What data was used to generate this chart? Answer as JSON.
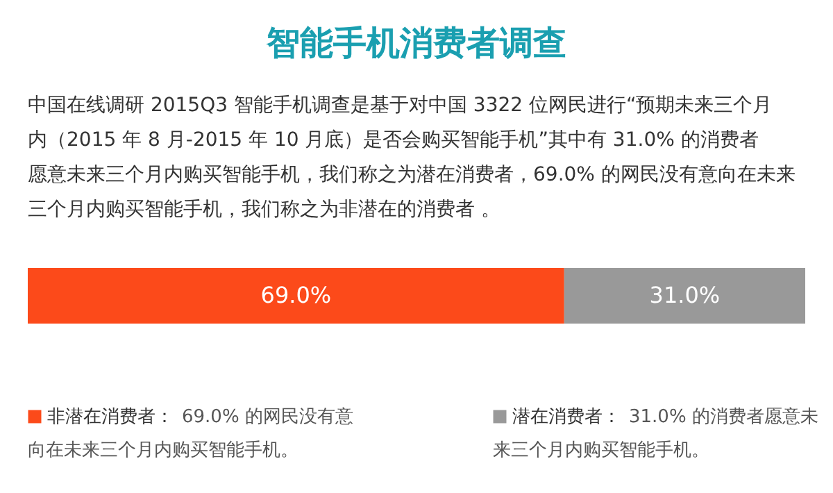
{
  "chart_data": {
    "type": "bar",
    "orientation": "horizontal",
    "stacked": true,
    "title": "智能手机消费者调查",
    "subtitle": "中国在线调研 2015Q3 智能手机调查是基于对中国 3322 位网民进行“预期未来三个月内（2015 年 8 月-2015 年 10 月底）是否会购买智能手机”其中有 31.0% 的消费者愿意未来三个月内购买智能手机，我们称之为潜在消费者，69.0% 的网民没有意向在未来三个月内购买智能手机，我们称之为非潜在的消费者 。",
    "categories": [
      null
    ],
    "series": [
      {
        "name": "非潜在消费者：",
        "color": "#fc4a1a",
        "values": [
          69.0
        ],
        "value_labels": [
          "69.0%"
        ]
      },
      {
        "name": "潜在消费者：",
        "color": "#999999",
        "values": [
          31.0
        ],
        "value_labels": [
          "31.0%"
        ]
      }
    ],
    "annotations": [
      "69.0% 的网民没有意向在未来三个月内购买智能手机。",
      "31.0% 的消费者愿意未来三个月内购买智能手机。"
    ],
    "legend": "bottom"
  }
}
